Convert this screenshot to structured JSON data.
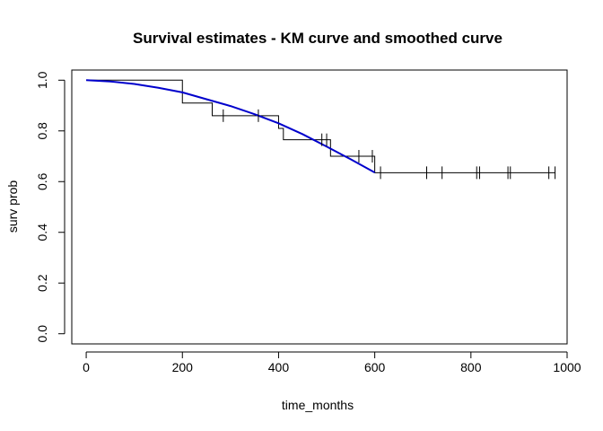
{
  "chart_data": {
    "type": "line",
    "title": "Survival estimates - KM curve and smoothed curve",
    "xlabel": "time_months",
    "ylabel": "surv prob",
    "xlim": [
      -30,
      1000
    ],
    "ylim": [
      -0.04,
      1.04
    ],
    "x_ticks": [
      0,
      200,
      400,
      600,
      800,
      1000
    ],
    "y_ticks": [
      0.0,
      0.2,
      0.4,
      0.6,
      0.8,
      1.0
    ],
    "x_tick_labels": [
      "0",
      "200",
      "400",
      "600",
      "800",
      "1000"
    ],
    "y_tick_labels": [
      "0.0",
      "0.2",
      "0.4",
      "0.6",
      "0.8",
      "1.0"
    ],
    "grid": false,
    "series": [
      {
        "style": "step",
        "color": "#000000",
        "x": [
          0,
          200,
          200,
          262,
          262,
          400,
          400,
          410,
          410,
          508,
          508,
          600,
          600,
          975
        ],
        "y": [
          1.0,
          1.0,
          0.91,
          0.91,
          0.86,
          0.86,
          0.81,
          0.81,
          0.765,
          0.765,
          0.7,
          0.7,
          0.635,
          0.635
        ]
      },
      {
        "style": "smooth",
        "color": "#0000cc",
        "x": [
          0,
          50,
          100,
          150,
          200,
          250,
          300,
          350,
          400,
          450,
          500,
          550,
          600
        ],
        "y": [
          1.0,
          0.995,
          0.985,
          0.97,
          0.952,
          0.925,
          0.898,
          0.866,
          0.83,
          0.787,
          0.738,
          0.688,
          0.636
        ]
      },
      {
        "style": "censor-marks",
        "color": "#000000",
        "x": [
          285,
          358,
          490,
          500,
          567,
          595,
          612,
          708,
          740,
          812,
          818,
          877,
          882,
          962,
          975
        ],
        "y": [
          0.86,
          0.86,
          0.765,
          0.765,
          0.7,
          0.7,
          0.635,
          0.635,
          0.635,
          0.635,
          0.635,
          0.635,
          0.635,
          0.635,
          0.635
        ]
      }
    ]
  }
}
